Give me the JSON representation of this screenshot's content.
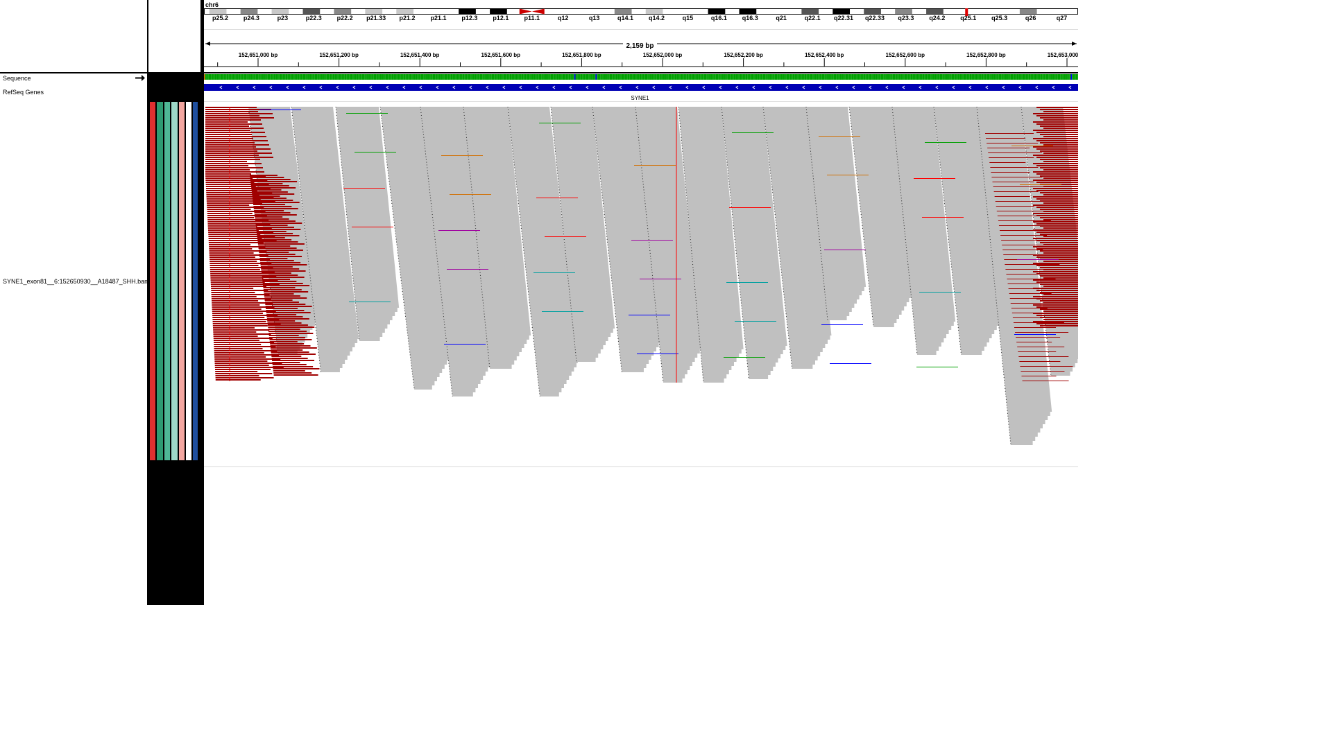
{
  "locus": {
    "chromosome": "chr6",
    "span_label": "2,159 bp"
  },
  "ideogram": {
    "bands": [
      "p25.2",
      "p24.3",
      "p23",
      "p22.3",
      "p22.2",
      "p21.33",
      "p21.2",
      "p21.1",
      "p12.3",
      "p12.1",
      "p11.1",
      "q12",
      "q13",
      "q14.1",
      "q14.2",
      "q15",
      "q16.1",
      "q16.3",
      "q21",
      "q22.1",
      "q22.31",
      "q22.33",
      "q23.3",
      "q24.2",
      "q25.1",
      "q25.3",
      "q26",
      "q27"
    ],
    "current_region_color": "#e00000",
    "centromere_color": "#cc0000"
  },
  "ruler": {
    "ticks": [
      "152,651,000 bp",
      "152,651,200 bp",
      "152,651,400 bp",
      "152,651,600 bp",
      "152,651,800 bp",
      "152,652,000 bp",
      "152,652,200 bp",
      "152,652,400 bp",
      "152,652,600 bp",
      "152,652,800 bp",
      "152,653,000 bp"
    ]
  },
  "tracks": {
    "sequence": {
      "name": "Sequence",
      "strand_arrow": "right-arrow-icon"
    },
    "refseq": {
      "name": "RefSeq Genes",
      "gene_label": "SYNE1",
      "gene_color": "#0000b4"
    },
    "alignment": {
      "name": "SYNE1_exon81__6:152650930__A18487_SHH.bam"
    }
  },
  "attribute_colors": [
    "#e03030",
    "#2e9b72",
    "#4fb896",
    "#9fd8c8",
    "#f3a6a0",
    "#ffffff",
    "#1f4f9f"
  ],
  "colors": {
    "read": "#c0c0c0",
    "soft_clip_red": "#a00000",
    "mismatch_red": "#ff0000"
  }
}
